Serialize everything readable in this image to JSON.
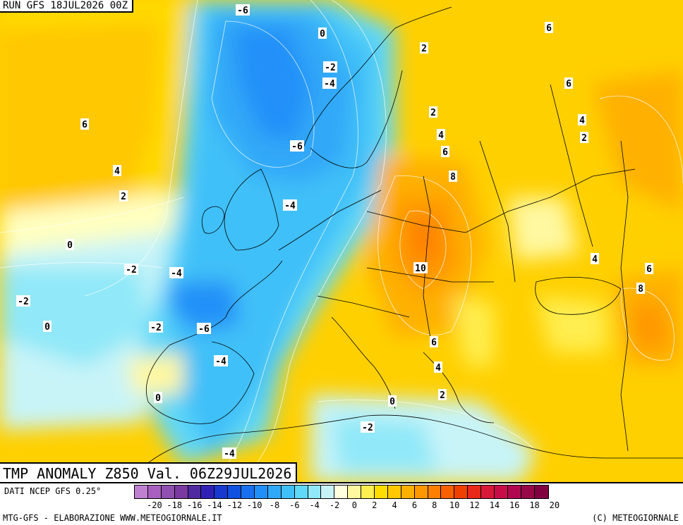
{
  "header": {
    "run_label": "RUN GFS 18JUL2026 00Z"
  },
  "title": {
    "text": "TMP ANOMALY Z850 Val. 06Z29JUL2026"
  },
  "source": {
    "text": "DATI NCEP GFS 0.25°"
  },
  "footer": {
    "left": "MTG-GFS - ELABORAZIONE WWW.METEOGIORNALE.IT",
    "right": "(C) METEOGIORNALE"
  },
  "legend": {
    "colors": [
      "#c080d0",
      "#a860c0",
      "#9050b0",
      "#7a3aa0",
      "#502aa0",
      "#3020b8",
      "#1838d0",
      "#1050e0",
      "#1870f0",
      "#2090f8",
      "#30a8f8",
      "#40c0f8",
      "#60d8f8",
      "#90e8f8",
      "#c8f4f8",
      "#ffffe0",
      "#fff8a0",
      "#ffee50",
      "#ffdc00",
      "#ffc800",
      "#ffb000",
      "#ff9800",
      "#ff8000",
      "#f86000",
      "#f04000",
      "#e82818",
      "#d81838",
      "#c80c48",
      "#b00850",
      "#980848",
      "#800040"
    ],
    "ticks": [
      "-20",
      "-18",
      "-16",
      "-14",
      "-12",
      "-10",
      "-8",
      "-6",
      "-4",
      "-2",
      "0",
      "2",
      "4",
      "6",
      "8",
      "10",
      "12",
      "14",
      "16",
      "18",
      "20"
    ]
  },
  "contour_labels": [
    {
      "text": "-6"
    },
    {
      "text": "0"
    },
    {
      "text": "6"
    },
    {
      "text": "6"
    },
    {
      "text": "2"
    },
    {
      "text": "-2"
    },
    {
      "text": "-4"
    },
    {
      "text": "6"
    },
    {
      "text": "2"
    },
    {
      "text": "4"
    },
    {
      "text": "2"
    },
    {
      "text": "-6"
    },
    {
      "text": "4"
    },
    {
      "text": "6"
    },
    {
      "text": "4"
    },
    {
      "text": "2"
    },
    {
      "text": "8"
    },
    {
      "text": "-4"
    },
    {
      "text": "0"
    },
    {
      "text": "10"
    },
    {
      "text": "-2"
    },
    {
      "text": "-4"
    },
    {
      "text": "4"
    },
    {
      "text": "6"
    },
    {
      "text": "-2"
    },
    {
      "text": "8"
    },
    {
      "text": "0"
    },
    {
      "text": "-2"
    },
    {
      "text": "-6"
    },
    {
      "text": "6"
    },
    {
      "text": "-4"
    },
    {
      "text": "4"
    },
    {
      "text": "0"
    },
    {
      "text": "2"
    },
    {
      "text": "0"
    },
    {
      "text": "-2"
    },
    {
      "text": "-4"
    }
  ]
}
